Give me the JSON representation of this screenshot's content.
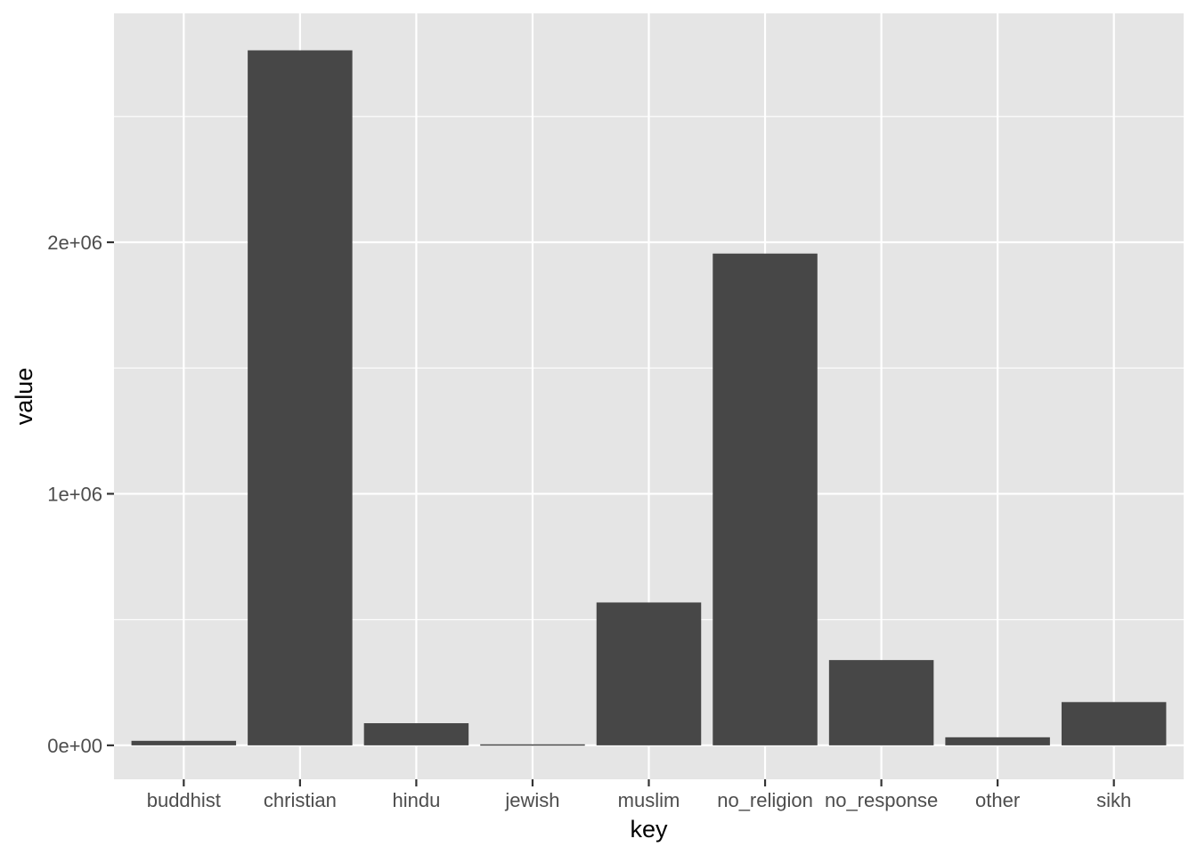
{
  "chart_data": {
    "type": "bar",
    "categories": [
      "buddhist",
      "christian",
      "hindu",
      "jewish",
      "muslim",
      "no_religion",
      "no_response",
      "other",
      "sikh"
    ],
    "values": [
      18000,
      2763000,
      88000,
      4000,
      568000,
      1955000,
      339000,
      32000,
      172000
    ],
    "xlabel": "key",
    "ylabel": "value",
    "ylim": [
      -135000,
      2910000
    ],
    "yticks": [
      0,
      1000000,
      2000000
    ],
    "ytick_labels": [
      "0e+00",
      "1e+06",
      "2e+06"
    ],
    "grid": true,
    "bar_color": "#474747",
    "panel_color": "#e5e5e5"
  }
}
